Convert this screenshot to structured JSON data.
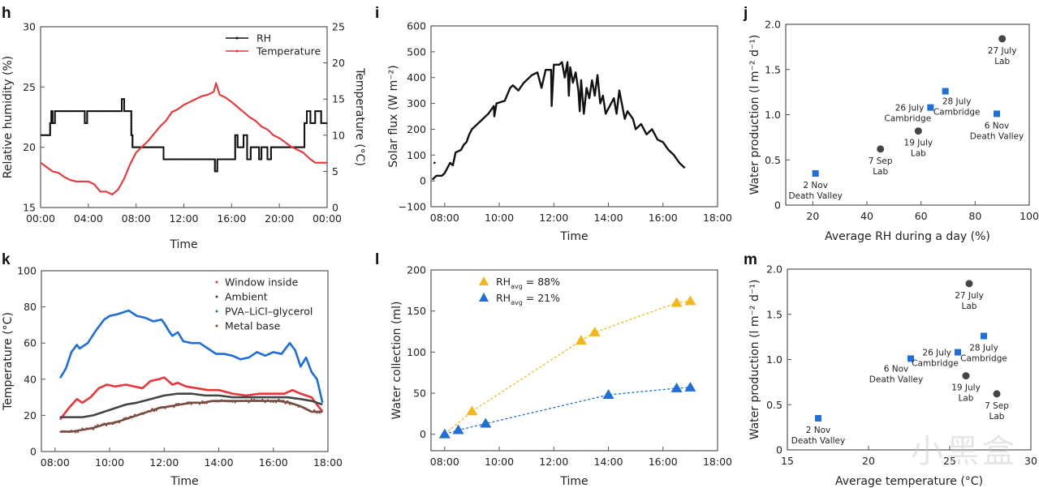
{
  "watermark": "小黑盒",
  "colors": {
    "black": "#111111",
    "red": "#e8373a",
    "blue": "#1f6fd6",
    "gray": "#454545",
    "brown": "#7a4a3e",
    "yellow": "#f2b81b"
  },
  "chart_data": [
    {
      "id": "h",
      "panel_letter": "h",
      "type": "line",
      "xlabel": "Time",
      "ylabel": "Relative humidity (%)",
      "y2label": "Temperature (°C)",
      "xlim": [
        0,
        24
      ],
      "ylim": [
        15,
        30
      ],
      "y2lim": [
        0,
        25
      ],
      "xticks": [
        0,
        4,
        8,
        12,
        16,
        20,
        24
      ],
      "xtick_labels": [
        "00:00",
        "04:00",
        "08:00",
        "12:00",
        "16:00",
        "20:00",
        "00:00"
      ],
      "yticks": [
        15,
        20,
        25,
        30
      ],
      "ytick_labels": [
        "15",
        "20",
        "25",
        "30"
      ],
      "y2ticks": [
        0,
        5,
        10,
        15,
        20,
        25
      ],
      "y2tick_labels": [
        "0",
        "5",
        "10",
        "15",
        "20",
        "25"
      ],
      "legend": [
        "RH",
        "Temperature"
      ],
      "legend_position": "top-right",
      "series": [
        {
          "name": "RH",
          "axis": "left",
          "color_key": "black",
          "step": true,
          "x": [
            0,
            0.8,
            0.9,
            1.0,
            1.2,
            3.7,
            3.9,
            6.8,
            7.0,
            7.6,
            7.7,
            10.3,
            14.6,
            14.8,
            16.3,
            16.5,
            17.0,
            17.3,
            17.6,
            18.3,
            18.5,
            19.0,
            19.3,
            19.5,
            22.1,
            22.3,
            22.6,
            23.0,
            23.5,
            24
          ],
          "y": [
            21,
            22,
            23,
            22,
            23,
            22,
            23,
            24,
            23,
            21,
            20,
            19,
            18,
            19,
            21,
            20,
            21,
            19,
            20,
            19,
            20,
            19,
            20,
            20,
            22,
            23,
            22,
            23,
            22,
            22
          ]
        },
        {
          "name": "Temperature",
          "axis": "right",
          "color_key": "red",
          "step": false,
          "x": [
            0,
            0.5,
            1.0,
            1.5,
            2.0,
            2.5,
            3.0,
            3.5,
            4.0,
            4.5,
            5.0,
            5.5,
            6.0,
            6.5,
            7.0,
            7.5,
            8.0,
            8.5,
            9.0,
            9.5,
            10.0,
            10.5,
            11.0,
            11.5,
            12.0,
            12.5,
            13.0,
            13.5,
            14.0,
            14.5,
            14.7,
            15.0,
            15.5,
            16.0,
            16.5,
            17.0,
            17.5,
            18.0,
            18.5,
            19.0,
            19.5,
            20.0,
            20.5,
            21.0,
            21.5,
            22.0,
            22.5,
            23.0,
            23.5,
            24.0
          ],
          "y": [
            6.2,
            5.6,
            5.0,
            4.8,
            4.2,
            3.8,
            3.6,
            3.6,
            3.6,
            3.2,
            2.2,
            2.2,
            1.8,
            2.5,
            4.0,
            6.0,
            7.6,
            8.4,
            9.2,
            10.2,
            11.2,
            12.0,
            13.2,
            13.6,
            14.2,
            14.6,
            15.0,
            15.4,
            15.6,
            16.0,
            17.2,
            15.6,
            15.2,
            14.6,
            13.9,
            13.2,
            12.5,
            12.0,
            11.2,
            10.8,
            10.0,
            9.6,
            9.0,
            8.4,
            8.0,
            7.6,
            6.8,
            6.2,
            6.2,
            6.2
          ]
        }
      ]
    },
    {
      "id": "i",
      "panel_letter": "i",
      "type": "line",
      "xlabel": "Time",
      "ylabel": "Solar flux (W m⁻²)",
      "xlim": [
        7.5,
        18
      ],
      "ylim": [
        -100,
        600
      ],
      "xticks": [
        8,
        10,
        12,
        14,
        16,
        18
      ],
      "xtick_labels": [
        "08:00",
        "10:00",
        "12:00",
        "14:00",
        "16:00",
        "18:00"
      ],
      "yticks": [
        -100,
        0,
        100,
        200,
        300,
        400,
        500,
        600
      ],
      "ytick_labels": [
        "−100",
        "0",
        "100",
        "200",
        "300",
        "400",
        "500",
        "600"
      ],
      "series": [
        {
          "name": "Solar flux",
          "color_key": "black",
          "x": [
            7.55,
            7.7,
            7.9,
            8.0,
            8.2,
            8.3,
            8.4,
            8.6,
            8.7,
            8.8,
            8.9,
            9.0,
            9.3,
            9.6,
            9.8,
            9.82,
            9.9,
            10.2,
            10.4,
            10.5,
            10.7,
            10.9,
            11.2,
            11.4,
            11.5,
            11.55,
            11.7,
            11.9,
            11.92,
            12.0,
            12.2,
            12.3,
            12.4,
            12.5,
            12.55,
            12.6,
            12.7,
            12.8,
            12.9,
            12.95,
            13.0,
            13.1,
            13.2,
            13.3,
            13.4,
            13.5,
            13.6,
            13.7,
            13.8,
            13.9,
            14.0,
            14.2,
            14.3,
            14.4,
            14.6,
            14.7,
            14.9,
            15.0,
            15.2,
            15.4,
            15.6,
            15.8,
            16.0,
            16.2,
            16.4,
            16.6,
            16.8
          ],
          "y": [
            5,
            20,
            20,
            30,
            70,
            60,
            110,
            120,
            140,
            150,
            180,
            200,
            230,
            260,
            290,
            250,
            300,
            310,
            360,
            370,
            350,
            380,
            410,
            420,
            380,
            360,
            430,
            430,
            290,
            450,
            450,
            460,
            400,
            460,
            330,
            440,
            380,
            420,
            350,
            270,
            390,
            260,
            360,
            320,
            390,
            330,
            410,
            300,
            330,
            260,
            280,
            320,
            260,
            350,
            240,
            270,
            240,
            200,
            220,
            180,
            200,
            160,
            150,
            120,
            100,
            70,
            50
          ]
        }
      ]
    },
    {
      "id": "j",
      "panel_letter": "j",
      "type": "scatter",
      "xlabel": "Average RH during a day (%)",
      "ylabel": "Water production (l m⁻² d⁻¹)",
      "xlim": [
        10,
        100
      ],
      "ylim": [
        0,
        2.0
      ],
      "xticks": [
        20,
        40,
        60,
        80,
        100
      ],
      "xtick_labels": [
        "20",
        "40",
        "60",
        "80",
        "100"
      ],
      "yticks": [
        0,
        0.5,
        1.0,
        1.5,
        2.0
      ],
      "ytick_labels": [
        "0",
        "0.5",
        "1.0",
        "1.5",
        "2.0"
      ],
      "points": [
        {
          "x": 21,
          "y": 0.35,
          "marker": "square",
          "color_key": "blue",
          "label": [
            "2 Nov",
            "Death Valley"
          ],
          "label_pos": "below"
        },
        {
          "x": 45,
          "y": 0.62,
          "marker": "circle",
          "color_key": "gray",
          "label": [
            "7 Sep",
            "Lab"
          ],
          "label_pos": "below"
        },
        {
          "x": 59,
          "y": 0.82,
          "marker": "circle",
          "color_key": "gray",
          "label": [
            "19 July",
            "Lab"
          ],
          "label_pos": "below"
        },
        {
          "x": 63.5,
          "y": 1.08,
          "marker": "square",
          "color_key": "blue",
          "label": [
            "26 July",
            "Cambridge"
          ],
          "label_pos": "left"
        },
        {
          "x": 69,
          "y": 1.26,
          "marker": "square",
          "color_key": "blue",
          "label": [
            "28 July",
            "Cambridge"
          ],
          "label_pos": "below-right"
        },
        {
          "x": 88,
          "y": 1.01,
          "marker": "square",
          "color_key": "blue",
          "label": [
            "6 Nov",
            "Death Valley"
          ],
          "label_pos": "below"
        },
        {
          "x": 90,
          "y": 1.84,
          "marker": "circle",
          "color_key": "gray",
          "label": [
            "27 July",
            "Lab"
          ],
          "label_pos": "below"
        }
      ]
    },
    {
      "id": "k",
      "panel_letter": "k",
      "type": "line",
      "xlabel": "Time",
      "ylabel": "Temperature (°C)",
      "xlim": [
        7.5,
        18
      ],
      "ylim": [
        0,
        100
      ],
      "xticks": [
        8,
        10,
        12,
        14,
        16,
        18
      ],
      "xtick_labels": [
        "08:00",
        "10:00",
        "12:00",
        "14:00",
        "16:00",
        "18:00"
      ],
      "yticks": [
        0,
        20,
        40,
        60,
        80,
        100
      ],
      "ytick_labels": [
        "0",
        "20",
        "40",
        "60",
        "80",
        "100"
      ],
      "legend_position": "top-right",
      "series": [
        {
          "name": "Window inside",
          "color_key": "red",
          "x": [
            8.2,
            8.5,
            8.8,
            9.0,
            9.3,
            9.6,
            9.9,
            10.2,
            10.6,
            10.9,
            11.2,
            11.5,
            11.8,
            12.0,
            12.3,
            12.5,
            12.8,
            13.2,
            13.6,
            14.0,
            14.5,
            15.0,
            15.5,
            16.0,
            16.4,
            16.7,
            17.0,
            17.4,
            17.8
          ],
          "y": [
            18,
            24,
            29,
            27,
            30,
            35,
            37,
            36,
            37,
            36,
            35,
            39,
            40,
            41,
            37,
            38,
            36,
            35,
            34,
            34,
            32,
            31,
            32,
            32,
            32,
            34,
            32,
            30,
            22
          ]
        },
        {
          "name": "Ambient",
          "color_key": "gray",
          "x": [
            8.2,
            8.6,
            9.0,
            9.4,
            9.8,
            10.2,
            10.6,
            11.0,
            11.5,
            12.0,
            12.5,
            13.0,
            13.5,
            14.0,
            14.5,
            15.0,
            15.5,
            16.0,
            16.5,
            17.0,
            17.4,
            17.8
          ],
          "y": [
            19,
            19,
            19,
            20,
            22,
            24,
            26,
            27,
            29,
            31,
            32,
            32,
            31,
            31,
            30,
            30,
            30,
            30,
            30,
            29,
            28,
            26
          ]
        },
        {
          "name": "PVA–LiCl–glycerol",
          "color_key": "blue",
          "x": [
            8.2,
            8.4,
            8.6,
            8.8,
            8.9,
            9.2,
            9.5,
            9.8,
            10.0,
            10.3,
            10.5,
            10.7,
            10.8,
            11.0,
            11.3,
            11.6,
            11.9,
            12.0,
            12.2,
            12.3,
            12.5,
            12.7,
            13.0,
            13.3,
            13.6,
            13.9,
            14.2,
            14.5,
            14.8,
            15.1,
            15.4,
            15.7,
            16.0,
            16.3,
            16.6,
            16.8,
            17.0,
            17.2,
            17.4,
            17.6,
            17.8
          ],
          "y": [
            41,
            46,
            55,
            59,
            57,
            60,
            67,
            73,
            75,
            76,
            77,
            78,
            77,
            75,
            74,
            72,
            73,
            71,
            66,
            64,
            66,
            61,
            60,
            60,
            57,
            54,
            54,
            53,
            51,
            52,
            55,
            53,
            55,
            54,
            60,
            56,
            47,
            52,
            44,
            40,
            27
          ]
        },
        {
          "name": "Metal base",
          "color_key": "brown",
          "x": [
            8.2,
            8.6,
            9.0,
            9.4,
            9.8,
            10.2,
            10.6,
            11.0,
            11.4,
            11.8,
            12.2,
            12.6,
            13.0,
            13.4,
            13.8,
            14.2,
            14.6,
            15.0,
            15.4,
            15.8,
            16.2,
            16.6,
            17.0,
            17.4,
            17.8
          ],
          "y": [
            11,
            11,
            12,
            13,
            15,
            16,
            18,
            20,
            22,
            24,
            25,
            26,
            27,
            27,
            28,
            28,
            28,
            28,
            28,
            28,
            28,
            27,
            25,
            22,
            22
          ]
        }
      ]
    },
    {
      "id": "l",
      "panel_letter": "l",
      "type": "line",
      "xlabel": "Time",
      "ylabel": "Water collection (ml)",
      "xlim": [
        7.5,
        18
      ],
      "ylim": [
        -20,
        200
      ],
      "xticks": [
        8,
        10,
        12,
        14,
        16,
        18
      ],
      "xtick_labels": [
        "08:00",
        "10:00",
        "12:00",
        "14:00",
        "16:00",
        "18:00"
      ],
      "yticks": [
        0,
        50,
        100,
        150,
        200
      ],
      "ytick_labels": [
        "0",
        "50",
        "100",
        "150",
        "200"
      ],
      "legend_position": "top-left",
      "series": [
        {
          "name": "RHavg = 88%",
          "legend_main": "RH",
          "legend_sub": "avg",
          "legend_rest": " = 88%",
          "color_key": "yellow",
          "x": [
            8.0,
            9.0,
            13.0,
            13.5,
            16.5,
            17.0
          ],
          "y": [
            0,
            28,
            114,
            124,
            160,
            162
          ]
        },
        {
          "name": "RHavg = 21%",
          "legend_main": "RH",
          "legend_sub": "avg",
          "legend_rest": " = 21%",
          "color_key": "blue",
          "x": [
            8.0,
            8.5,
            9.5,
            14.0,
            16.5,
            17.0
          ],
          "y": [
            0,
            5,
            13,
            48,
            56,
            57
          ]
        }
      ]
    },
    {
      "id": "m",
      "panel_letter": "m",
      "type": "scatter",
      "xlabel": "Average temperature (°C)",
      "ylabel": "Water production (l m⁻² d⁻¹)",
      "xlim": [
        15,
        30
      ],
      "ylim": [
        0,
        2.0
      ],
      "xticks": [
        15,
        20,
        25,
        30
      ],
      "xtick_labels": [
        "15",
        "20",
        "25",
        "30"
      ],
      "yticks": [
        0,
        0.5,
        1.0,
        1.5,
        2.0
      ],
      "ytick_labels": [
        "0",
        "0.5",
        "1.0",
        "1.5",
        "2.0"
      ],
      "points": [
        {
          "x": 16.9,
          "y": 0.35,
          "marker": "square",
          "color_key": "blue",
          "label": [
            "2 Nov",
            "Death Valley"
          ],
          "label_pos": "below"
        },
        {
          "x": 22.6,
          "y": 1.01,
          "marker": "square",
          "color_key": "blue",
          "label": [
            "6 Nov",
            "Death Valley"
          ],
          "label_pos": "below-left"
        },
        {
          "x": 25.5,
          "y": 1.08,
          "marker": "square",
          "color_key": "blue",
          "label": [
            "26 July",
            "Cambridge"
          ],
          "label_pos": "left"
        },
        {
          "x": 27.1,
          "y": 1.26,
          "marker": "square",
          "color_key": "blue",
          "label": [
            "28 July",
            "Cambridge"
          ],
          "label_pos": "below"
        },
        {
          "x": 26.0,
          "y": 0.82,
          "marker": "circle",
          "color_key": "gray",
          "label": [
            "19 July",
            "Lab"
          ],
          "label_pos": "below"
        },
        {
          "x": 26.2,
          "y": 1.84,
          "marker": "circle",
          "color_key": "gray",
          "label": [
            "27 July",
            "Lab"
          ],
          "label_pos": "below"
        },
        {
          "x": 27.9,
          "y": 0.62,
          "marker": "circle",
          "color_key": "gray",
          "label": [
            "7 Sep",
            "Lab"
          ],
          "label_pos": "below"
        }
      ]
    }
  ]
}
